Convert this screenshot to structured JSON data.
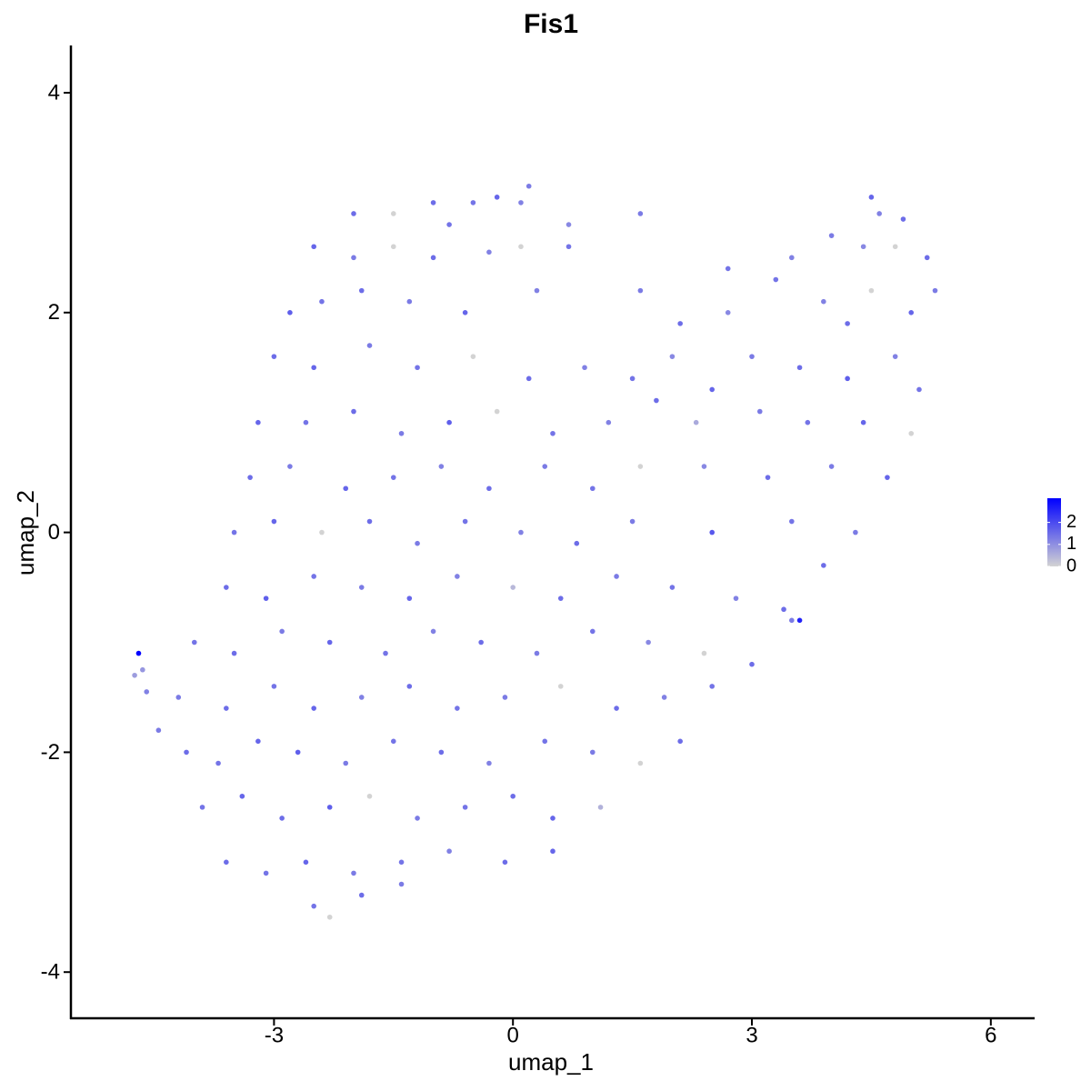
{
  "chart_data": {
    "type": "scatter",
    "title": "Fis1",
    "x_label": "umap_1",
    "y_label": "umap_2",
    "xlim": [
      -5.55,
      6.55
    ],
    "ylim": [
      -4.42,
      4.43
    ],
    "xticks": [
      -3,
      0,
      3,
      6
    ],
    "yticks": [
      -4,
      -2,
      0,
      2,
      4
    ],
    "color_scale": {
      "low": "#d3d3d3",
      "high": "#0000ff",
      "limits": [
        0,
        3.1
      ],
      "ticks": [
        0,
        1,
        2
      ]
    },
    "x": [
      -1.0,
      -0.5,
      -0.2,
      0.2,
      0.1,
      -1.5,
      -2.0,
      0.7,
      -0.8,
      1.6,
      4.5,
      4.6,
      4.9,
      -2.5,
      -2.0,
      -1.5,
      -1.0,
      -0.3,
      0.1,
      0.7,
      4.0,
      4.4,
      4.8,
      5.2,
      3.5,
      2.7,
      -2.8,
      -2.4,
      -1.9,
      -1.3,
      -0.6,
      0.3,
      1.6,
      2.1,
      2.7,
      3.3,
      3.9,
      4.5,
      5.0,
      5.3,
      4.2,
      -3.0,
      -2.5,
      -1.8,
      -1.2,
      -0.5,
      0.2,
      0.9,
      1.5,
      2.0,
      2.5,
      3.0,
      3.6,
      4.2,
      4.8,
      5.1,
      -3.2,
      -2.6,
      -2.0,
      -1.4,
      -0.8,
      -0.2,
      0.5,
      1.2,
      1.8,
      2.3,
      3.1,
      3.7,
      4.4,
      5.0,
      -3.3,
      -2.8,
      -2.1,
      -1.5,
      -0.9,
      -0.3,
      0.4,
      1.0,
      1.6,
      2.4,
      3.2,
      4.0,
      4.7,
      -3.5,
      -3.0,
      -2.4,
      -1.8,
      -1.2,
      -0.6,
      0.1,
      0.8,
      1.5,
      2.5,
      3.5,
      4.3,
      3.9,
      -3.6,
      -3.1,
      -2.5,
      -1.9,
      -1.3,
      -0.7,
      0.0,
      0.6,
      1.3,
      2.0,
      2.8,
      3.4,
      -4.0,
      -3.5,
      -2.9,
      -2.3,
      -1.6,
      -1.0,
      -0.4,
      0.3,
      1.0,
      1.7,
      2.4,
      3.0,
      3.5,
      3.6,
      -4.2,
      -3.6,
      -3.0,
      -2.5,
      -1.9,
      -1.3,
      -0.7,
      -0.1,
      0.6,
      1.3,
      1.9,
      2.5,
      -4.1,
      -3.7,
      -3.2,
      -2.7,
      -2.1,
      -1.5,
      -0.9,
      -0.3,
      0.4,
      1.0,
      1.6,
      2.1,
      -3.9,
      -3.4,
      -2.9,
      -2.3,
      -1.8,
      -1.2,
      -0.6,
      0.0,
      0.5,
      1.1,
      -3.6,
      -3.1,
      -2.6,
      -2.0,
      -1.4,
      -0.8,
      -0.1,
      0.5,
      -2.5,
      -2.3,
      -1.9,
      -1.4,
      -4.7,
      -4.75,
      -4.65,
      -4.6,
      -4.45
    ],
    "values": [
      3.0,
      3.0,
      3.05,
      3.15,
      3.0,
      2.9,
      2.9,
      2.8,
      2.8,
      2.9,
      3.05,
      2.9,
      2.85,
      2.6,
      2.5,
      2.6,
      2.5,
      2.55,
      2.6,
      2.6,
      2.7,
      2.6,
      2.6,
      2.5,
      2.5,
      2.4,
      2.0,
      2.1,
      2.2,
      2.1,
      2.0,
      2.2,
      2.2,
      1.9,
      2.0,
      2.3,
      2.1,
      2.2,
      2.0,
      2.2,
      1.9,
      1.6,
      1.5,
      1.7,
      1.5,
      1.6,
      1.4,
      1.5,
      1.4,
      1.6,
      1.3,
      1.6,
      1.5,
      1.4,
      1.6,
      1.3,
      1.0,
      1.0,
      1.1,
      0.9,
      1.0,
      1.1,
      0.9,
      1.0,
      1.2,
      1.0,
      1.1,
      1.0,
      1.0,
      0.9,
      0.5,
      0.6,
      0.4,
      0.5,
      0.6,
      0.4,
      0.6,
      0.4,
      0.6,
      0.6,
      0.5,
      0.6,
      0.5,
      0.0,
      0.1,
      0.0,
      0.1,
      -0.1,
      0.1,
      0.0,
      -0.1,
      0.1,
      0.0,
      0.1,
      0.0,
      -0.3,
      -0.5,
      -0.6,
      -0.4,
      -0.5,
      -0.6,
      -0.4,
      -0.5,
      -0.6,
      -0.4,
      -0.5,
      -0.6,
      -0.7,
      -1.0,
      -1.1,
      -0.9,
      -1.0,
      -1.1,
      -0.9,
      -1.0,
      -1.1,
      -0.9,
      -1.0,
      -1.1,
      -1.2,
      -0.8,
      -0.8,
      -1.5,
      -1.6,
      -1.4,
      -1.6,
      -1.5,
      -1.4,
      -1.6,
      -1.5,
      -1.4,
      -1.6,
      -1.5,
      -1.4,
      -2.0,
      -2.1,
      -1.9,
      -2.0,
      -2.1,
      -1.9,
      -2.0,
      -2.1,
      -1.9,
      -2.0,
      -2.1,
      -1.9,
      -2.5,
      -2.4,
      -2.6,
      -2.5,
      -2.4,
      -2.6,
      -2.5,
      -2.4,
      -2.6,
      -2.5,
      -3.0,
      -3.1,
      -3.0,
      -3.1,
      -3.0,
      -2.9,
      -3.0,
      -2.9,
      -3.4,
      -3.5,
      -3.3,
      -3.2,
      -1.1,
      -1.3,
      -1.25,
      -1.45,
      -1.8
    ],
    "expression": [
      1.5,
      1.4,
      1.6,
      1.3,
      1.2,
      0,
      1.5,
      1.1,
      1.4,
      1.3,
      1.6,
      1.2,
      1.5,
      1.6,
      1.3,
      0,
      1.5,
      1.2,
      0,
      1.4,
      1.3,
      1.1,
      0,
      1.5,
      1.2,
      1.4,
      1.7,
      1.4,
      1.5,
      1.3,
      1.6,
      1.2,
      1.3,
      1.5,
      1.1,
      1.4,
      1.2,
      0,
      1.6,
      1.3,
      1.5,
      1.5,
      1.6,
      1.3,
      1.4,
      0,
      1.5,
      1.2,
      1.4,
      1.1,
      1.6,
      1.3,
      1.5,
      1.7,
      1.2,
      1.4,
      1.6,
      1.4,
      1.5,
      1.3,
      1.7,
      0,
      1.4,
      1.2,
      1.5,
      0.6,
      1.3,
      1.4,
      1.6,
      0,
      1.5,
      1.3,
      1.6,
      1.4,
      1.2,
      1.5,
      1.3,
      1.4,
      0,
      1.1,
      1.5,
      1.3,
      1.6,
      1.4,
      1.6,
      0,
      1.5,
      1.3,
      1.4,
      1.2,
      1.5,
      1.3,
      1.8,
      1.4,
      1.3,
      1.5,
      1.5,
      1.7,
      1.4,
      1.3,
      1.6,
      1.2,
      0.4,
      1.5,
      1.3,
      1.4,
      1.2,
      1.5,
      1.4,
      1.5,
      1.3,
      1.6,
      1.4,
      1.2,
      1.5,
      1.3,
      1.4,
      1.1,
      0,
      1.5,
      1.3,
      2.6,
      1.3,
      1.5,
      1.4,
      1.6,
      1.2,
      1.5,
      1.4,
      1.3,
      0,
      1.5,
      1.2,
      1.4,
      1.5,
      1.4,
      1.6,
      1.7,
      1.3,
      1.4,
      1.5,
      1.2,
      1.4,
      1.3,
      0,
      1.5,
      1.4,
      1.6,
      1.5,
      1.7,
      0,
      1.3,
      1.4,
      1.5,
      1.6,
      0.5,
      1.5,
      1.4,
      1.6,
      1.3,
      1.4,
      1.2,
      1.5,
      1.6,
      1.4,
      0,
      1.5,
      1.3,
      3.1,
      0.8,
      0.9,
      1.2,
      1.3
    ]
  }
}
